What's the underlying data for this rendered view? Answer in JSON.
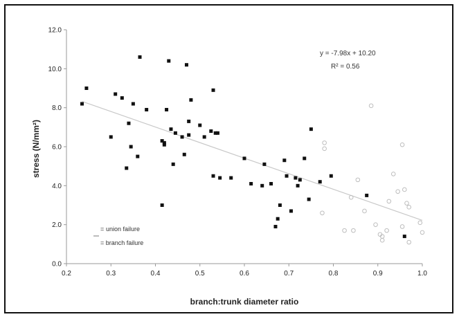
{
  "chart_data": {
    "type": "scatter",
    "xlabel": "branch:trunk diameter ratio",
    "ylabel": "stress (N/mm²)",
    "xlim": [
      0.2,
      1.0
    ],
    "ylim": [
      0.0,
      12.0
    ],
    "xticks": [
      "0.2",
      "0.3",
      "0.4",
      "0.5",
      "0.6",
      "0.7",
      "0.8",
      "0.9",
      "1.0"
    ],
    "yticks": [
      "0.0",
      "2.0",
      "4.0",
      "6.0",
      "8.0",
      "10.0",
      "12.0"
    ],
    "grid": false,
    "legend_position": "bottom-left",
    "equation": "y = -7.98x + 10.20",
    "r2": "R² = 0.56",
    "trendline": {
      "slope": -7.98,
      "intercept": 10.2,
      "x_start": 0.235,
      "x_end": 1.0
    },
    "series": [
      {
        "name": "union failure",
        "marker": "open-circle",
        "color": "#bdbdbd",
        "points": [
          [
            0.775,
            2.6
          ],
          [
            0.78,
            6.2
          ],
          [
            0.78,
            5.9
          ],
          [
            0.825,
            1.7
          ],
          [
            0.845,
            1.7
          ],
          [
            0.855,
            4.3
          ],
          [
            0.84,
            3.4
          ],
          [
            0.87,
            2.7
          ],
          [
            0.885,
            8.1
          ],
          [
            0.895,
            2.0
          ],
          [
            0.905,
            1.5
          ],
          [
            0.91,
            1.2
          ],
          [
            0.91,
            1.4
          ],
          [
            0.925,
            3.2
          ],
          [
            0.935,
            4.6
          ],
          [
            0.945,
            3.7
          ],
          [
            0.955,
            6.1
          ],
          [
            0.955,
            1.9
          ],
          [
            0.96,
            3.8
          ],
          [
            0.965,
            3.1
          ],
          [
            0.97,
            2.9
          ],
          [
            0.97,
            1.1
          ],
          [
            0.995,
            2.1
          ],
          [
            1.0,
            1.6
          ],
          [
            0.92,
            1.7
          ]
        ]
      },
      {
        "name": "branch failure",
        "marker": "filled-square",
        "color": "#111111",
        "points": [
          [
            0.235,
            8.2
          ],
          [
            0.245,
            9.0
          ],
          [
            0.3,
            6.5
          ],
          [
            0.31,
            8.7
          ],
          [
            0.325,
            8.5
          ],
          [
            0.335,
            4.9
          ],
          [
            0.34,
            7.2
          ],
          [
            0.345,
            6.0
          ],
          [
            0.35,
            8.2
          ],
          [
            0.36,
            5.5
          ],
          [
            0.365,
            10.6
          ],
          [
            0.38,
            7.9
          ],
          [
            0.415,
            3.0
          ],
          [
            0.415,
            6.3
          ],
          [
            0.42,
            6.1
          ],
          [
            0.42,
            6.2
          ],
          [
            0.425,
            7.9
          ],
          [
            0.43,
            10.4
          ],
          [
            0.435,
            6.9
          ],
          [
            0.44,
            5.1
          ],
          [
            0.445,
            6.7
          ],
          [
            0.46,
            6.5
          ],
          [
            0.465,
            5.6
          ],
          [
            0.47,
            10.2
          ],
          [
            0.475,
            6.6
          ],
          [
            0.475,
            7.3
          ],
          [
            0.48,
            8.4
          ],
          [
            0.5,
            7.1
          ],
          [
            0.51,
            6.5
          ],
          [
            0.525,
            6.8
          ],
          [
            0.53,
            4.5
          ],
          [
            0.53,
            8.9
          ],
          [
            0.535,
            6.7
          ],
          [
            0.54,
            6.7
          ],
          [
            0.545,
            4.4
          ],
          [
            0.57,
            4.4
          ],
          [
            0.6,
            5.4
          ],
          [
            0.615,
            4.1
          ],
          [
            0.64,
            4.0
          ],
          [
            0.645,
            5.1
          ],
          [
            0.66,
            4.1
          ],
          [
            0.67,
            1.9
          ],
          [
            0.675,
            2.3
          ],
          [
            0.68,
            3.0
          ],
          [
            0.69,
            5.3
          ],
          [
            0.695,
            4.5
          ],
          [
            0.705,
            2.7
          ],
          [
            0.715,
            4.4
          ],
          [
            0.72,
            4.0
          ],
          [
            0.725,
            4.3
          ],
          [
            0.735,
            5.4
          ],
          [
            0.745,
            3.3
          ],
          [
            0.75,
            6.9
          ],
          [
            0.77,
            4.2
          ],
          [
            0.795,
            4.5
          ],
          [
            0.875,
            3.5
          ],
          [
            0.96,
            1.4
          ]
        ]
      }
    ]
  }
}
